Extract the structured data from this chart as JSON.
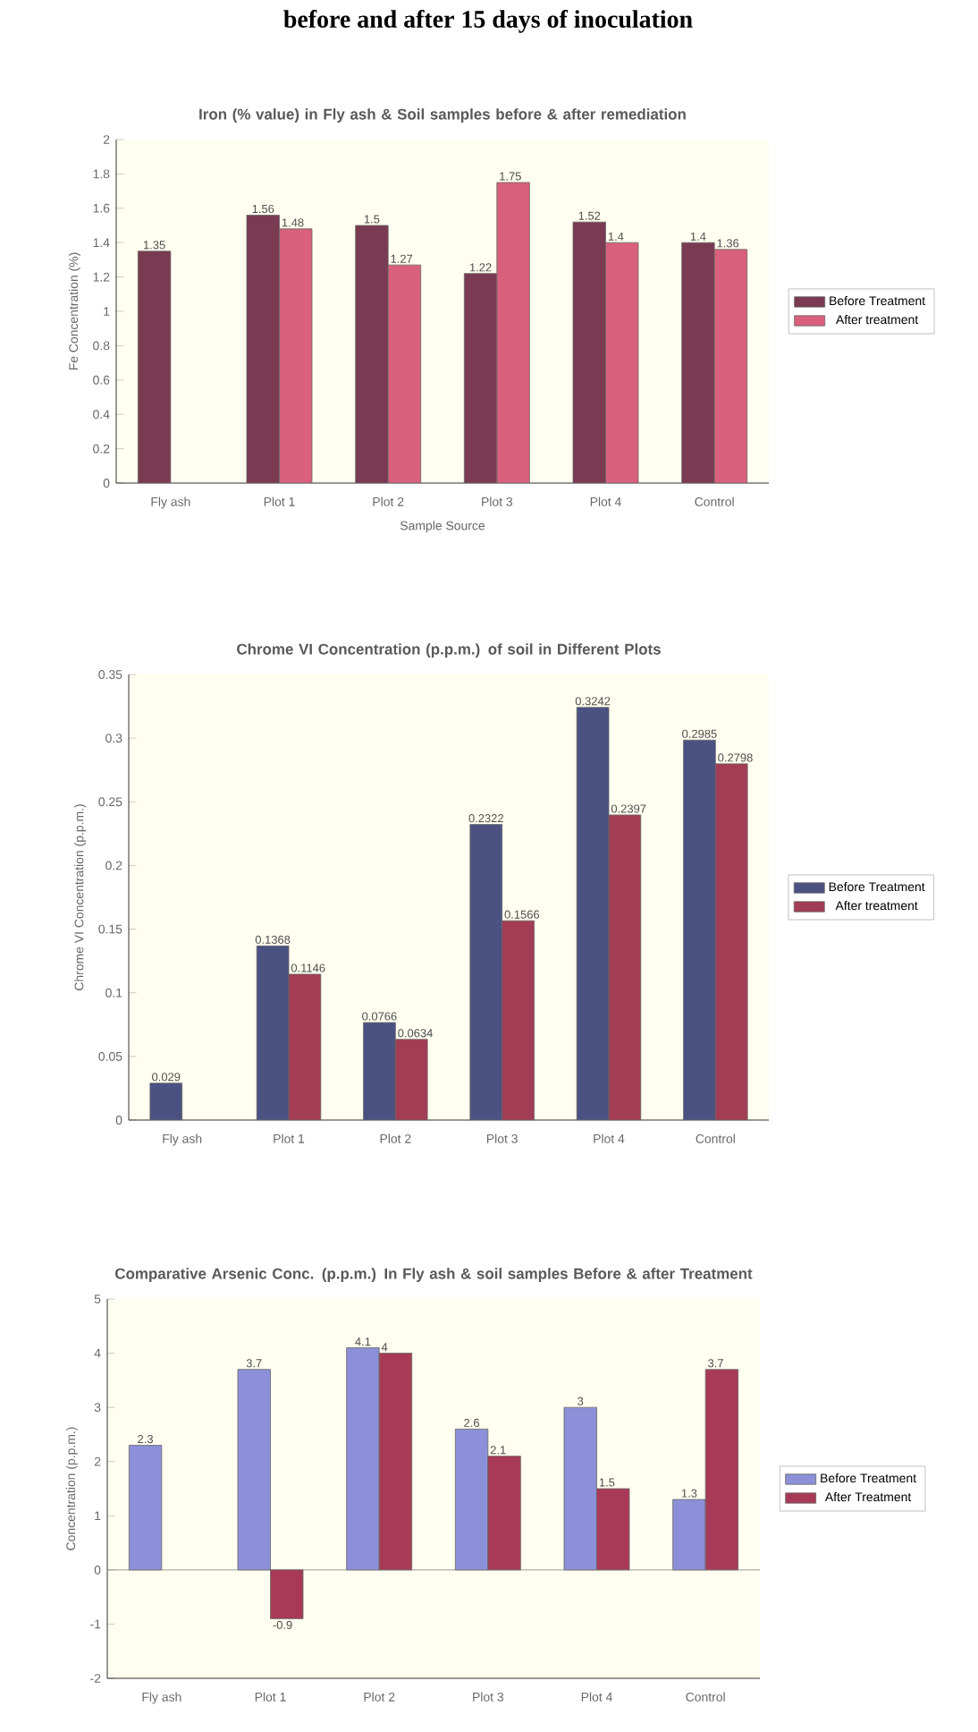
{
  "chart_data": [
    {
      "type": "bar",
      "title": "Iron (% value) in Fly ash & Soil samples before & after remediation",
      "xlabel": "Sample Source",
      "ylabel": "Fe Concentration (%)",
      "annotations": [
        "before and after 15 days of inoculation"
      ],
      "categories": [
        "Fly ash",
        "Plot 1",
        "Plot 2",
        "Plot 3",
        "Plot 4",
        "Control"
      ],
      "series": [
        {
          "name": "Before Treatment",
          "color": "#7a3a52",
          "values": [
            1.35,
            1.56,
            1.5,
            1.22,
            1.52,
            1.4
          ]
        },
        {
          "name": "After treatment",
          "color": "#d9607c",
          "values": [
            null,
            1.48,
            1.27,
            1.75,
            1.4,
            1.36
          ]
        }
      ],
      "ylim": [
        0,
        2
      ],
      "yticks": [
        0,
        0.2,
        0.4,
        0.6,
        0.8,
        1,
        1.2,
        1.4,
        1.6,
        1.8,
        2
      ],
      "data_labels": true,
      "legend": "right"
    },
    {
      "type": "bar",
      "title": "Chrome VI Concentration (p.p.m.) of soil in Different Plots",
      "ylabel": "Chrome VI Concentration (p.p.m.)",
      "categories": [
        "Fly ash",
        "Plot 1",
        "Plot 2",
        "Plot 3",
        "Plot 4",
        "Control"
      ],
      "series": [
        {
          "name": "Before Treatment",
          "color": "#4b5282",
          "values": [
            0.029,
            0.1368,
            0.0766,
            0.2322,
            0.3242,
            0.2985
          ]
        },
        {
          "name": "After treatment",
          "color": "#a33c55",
          "values": [
            null,
            0.1146,
            0.0634,
            0.1566,
            0.2397,
            0.2798
          ]
        }
      ],
      "ylim": [
        0,
        0.35
      ],
      "yticks": [
        0,
        0.05,
        0.1,
        0.15,
        0.2,
        0.25,
        0.3,
        0.35
      ],
      "data_labels": true,
      "legend": "right"
    },
    {
      "type": "bar",
      "title": "Comparative Arsenic Conc. (p.p.m.) In Fly ash & soil samples Before & after Treatment",
      "ylabel": "Concentration (p.p.m.)",
      "categories": [
        "Fly ash",
        "Plot 1",
        "Plot 2",
        "Plot 3",
        "Plot 4",
        "Control"
      ],
      "series": [
        {
          "name": "Before Treatment",
          "color": "#8c90d8",
          "values": [
            2.3,
            3.7,
            4.1,
            2.6,
            3,
            1.3
          ]
        },
        {
          "name": "After Treatment",
          "color": "#a83a58",
          "values": [
            null,
            -0.9,
            4,
            2.1,
            1.5,
            3.7
          ]
        }
      ],
      "ylim": [
        -2,
        5
      ],
      "yticks": [
        -2,
        -1,
        0,
        1,
        2,
        3,
        4,
        5
      ],
      "data_labels": true,
      "legend": "right"
    }
  ]
}
